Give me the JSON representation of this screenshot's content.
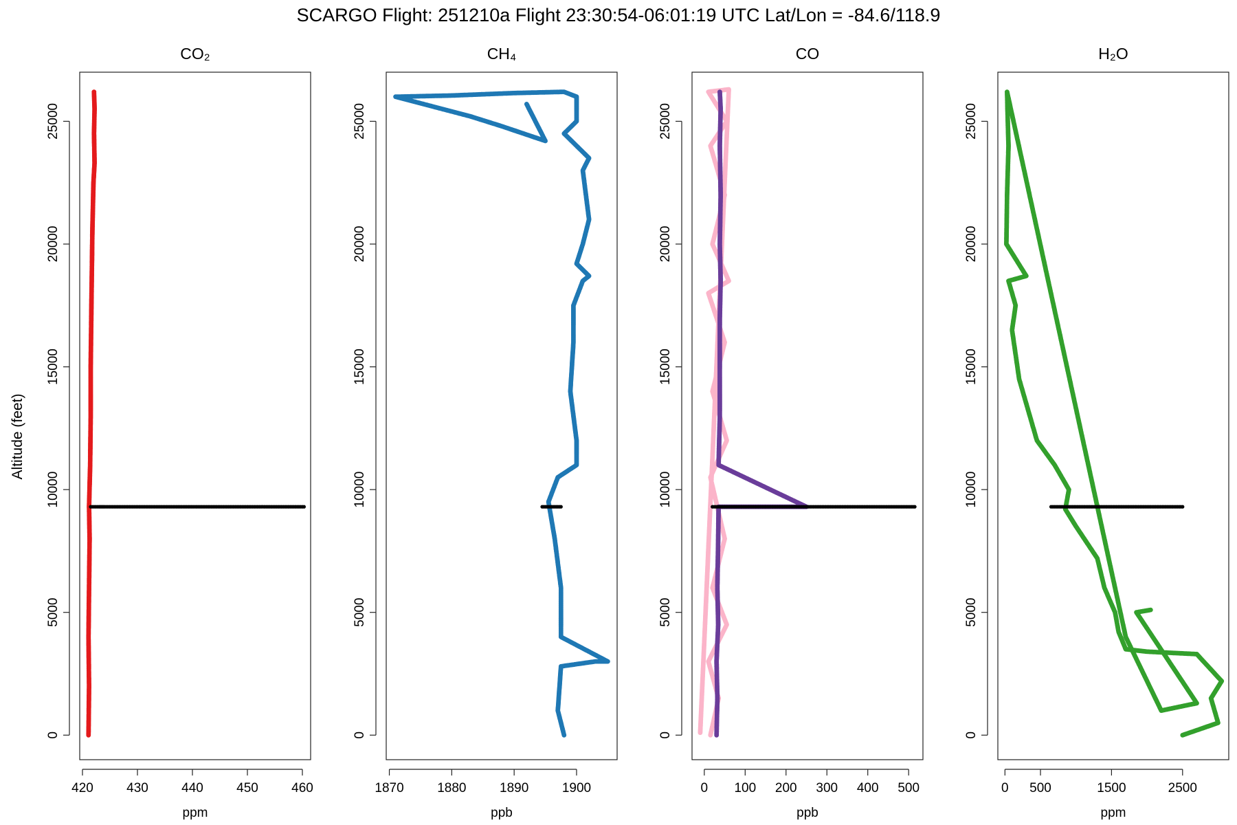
{
  "title": "SCARGO Flight: 251210a  Flight  23:30:54-06:01:19 UTC  Lat/Lon = -84.6/118.9",
  "ylabel": "Altitude (feet)",
  "chart_data": [
    {
      "type": "scatter",
      "title": "CO₂",
      "xlabel": "ppm",
      "xlim": [
        419.5,
        461.5
      ],
      "xticks": [
        420,
        430,
        440,
        450,
        460
      ],
      "ylim": [
        -1000,
        27000
      ],
      "yticks": [
        0,
        5000,
        10000,
        15000,
        20000,
        25000
      ],
      "series": [
        {
          "color": "#e41a1c",
          "points": [
            [
              421.1,
              0
            ],
            [
              421.2,
              2000
            ],
            [
              421.1,
              4000
            ],
            [
              421.2,
              6000
            ],
            [
              421.3,
              8000
            ],
            [
              421.2,
              9300
            ],
            [
              421.4,
              11000
            ],
            [
              421.5,
              13000
            ],
            [
              421.5,
              15000
            ],
            [
              421.6,
              17000
            ],
            [
              421.7,
              18800
            ],
            [
              421.8,
              20500
            ],
            [
              422.0,
              22500
            ],
            [
              422.2,
              23300
            ],
            [
              422.1,
              24500
            ],
            [
              422.2,
              25500
            ],
            [
              422.1,
              26200
            ]
          ]
        },
        {
          "color": "#000000",
          "points": [
            [
              421.5,
              9300
            ],
            [
              423.0,
              9300
            ],
            [
              424.0,
              9300
            ],
            [
              427.0,
              9300
            ],
            [
              436.5,
              9300
            ],
            [
              445.0,
              9300
            ],
            [
              460.3,
              9300
            ]
          ]
        }
      ]
    },
    {
      "type": "scatter",
      "title": "CH₄",
      "xlabel": "ppb",
      "xlim": [
        1869.5,
        1906.5
      ],
      "xticks": [
        1870,
        1880,
        1890,
        1900
      ],
      "ylim": [
        -1000,
        27000
      ],
      "yticks": [
        0,
        5000,
        10000,
        15000,
        20000,
        25000
      ],
      "series": [
        {
          "color": "#1f78b4",
          "points": [
            [
              1898,
              0
            ],
            [
              1897,
              1000
            ],
            [
              1897.5,
              2800
            ],
            [
              1903,
              3000
            ],
            [
              1905,
              3000
            ],
            [
              1897.5,
              4000
            ],
            [
              1897.5,
              6000
            ],
            [
              1896.5,
              8000
            ],
            [
              1895.5,
              9500
            ],
            [
              1897,
              10500
            ],
            [
              1900,
              11000
            ],
            [
              1900,
              12000
            ],
            [
              1899,
              14000
            ],
            [
              1899.5,
              16000
            ],
            [
              1899.5,
              17500
            ],
            [
              1901,
              18500
            ],
            [
              1902,
              18700
            ],
            [
              1900,
              19200
            ],
            [
              1901,
              20000
            ],
            [
              1902,
              21000
            ],
            [
              1901.5,
              22000
            ],
            [
              1901,
              23000
            ],
            [
              1902,
              23500
            ],
            [
              1898,
              24500
            ],
            [
              1900,
              25000
            ],
            [
              1900,
              26000
            ],
            [
              1898,
              26200
            ],
            [
              1890,
              26150
            ],
            [
              1880,
              26050
            ],
            [
              1871,
              26000
            ],
            [
              1883,
              25200
            ],
            [
              1888,
              24800
            ],
            [
              1895,
              24200
            ],
            [
              1892,
              25700
            ]
          ]
        },
        {
          "color": "#000000",
          "points": [
            [
              1894.5,
              9300
            ],
            [
              1895.5,
              9300
            ],
            [
              1896.5,
              9300
            ],
            [
              1897.5,
              9300
            ]
          ]
        }
      ]
    },
    {
      "type": "scatter",
      "title": "CO",
      "xlabel": "ppb",
      "xlim": [
        -30,
        535
      ],
      "xticks": [
        0,
        100,
        200,
        300,
        400,
        500
      ],
      "ylim": [
        -1000,
        27000
      ],
      "yticks": [
        0,
        5000,
        10000,
        15000,
        20000,
        25000
      ],
      "series": [
        {
          "color": "#fbb4c9",
          "points": [
            [
              15,
              0
            ],
            [
              35,
              1500
            ],
            [
              10,
              3000
            ],
            [
              55,
              4500
            ],
            [
              20,
              6000
            ],
            [
              50,
              8000
            ],
            [
              15,
              10500
            ],
            [
              55,
              12000
            ],
            [
              20,
              14000
            ],
            [
              50,
              16000
            ],
            [
              10,
              18000
            ],
            [
              60,
              18500
            ],
            [
              20,
              20000
            ],
            [
              50,
              22000
            ],
            [
              15,
              24000
            ],
            [
              55,
              25000
            ],
            [
              10,
              26200
            ],
            [
              60,
              26300
            ],
            [
              -10,
              100
            ]
          ]
        },
        {
          "color": "#6a3d9a",
          "points": [
            [
              30,
              0
            ],
            [
              32,
              1500
            ],
            [
              30,
              3000
            ],
            [
              34,
              4500
            ],
            [
              32,
              6000
            ],
            [
              34,
              8000
            ],
            [
              35,
              9300
            ],
            [
              80,
              9300
            ],
            [
              160,
              9300
            ],
            [
              250,
              9300
            ],
            [
              35,
              11000
            ],
            [
              38,
              13000
            ],
            [
              38,
              15000
            ],
            [
              38,
              17000
            ],
            [
              40,
              18500
            ],
            [
              38,
              20000
            ],
            [
              40,
              22000
            ],
            [
              38,
              24000
            ],
            [
              40,
              25500
            ],
            [
              38,
              26200
            ]
          ]
        },
        {
          "color": "#000000",
          "points": [
            [
              20,
              9300
            ],
            [
              280,
              9300
            ],
            [
              400,
              9300
            ],
            [
              450,
              9300
            ],
            [
              515,
              9300
            ]
          ]
        }
      ]
    },
    {
      "type": "scatter",
      "title": "H₂O",
      "xlabel": "ppm",
      "xlim": [
        -100,
        3150
      ],
      "xticks": [
        0,
        500,
        1500,
        2500
      ],
      "ylim": [
        -1000,
        27000
      ],
      "yticks": [
        0,
        5000,
        10000,
        15000,
        20000,
        25000
      ],
      "series": [
        {
          "color": "#33a02c",
          "points": [
            [
              2500,
              0
            ],
            [
              3000,
              500
            ],
            [
              2900,
              1500
            ],
            [
              3050,
              2200
            ],
            [
              2700,
              3300
            ],
            [
              2000,
              3400
            ],
            [
              1700,
              3500
            ],
            [
              1600,
              4200
            ],
            [
              1550,
              5000
            ],
            [
              1400,
              6000
            ],
            [
              1300,
              7200
            ],
            [
              1000,
              8500
            ],
            [
              850,
              9200
            ],
            [
              900,
              10000
            ],
            [
              700,
              11000
            ],
            [
              450,
              12000
            ],
            [
              300,
              13500
            ],
            [
              200,
              14500
            ],
            [
              100,
              16500
            ],
            [
              150,
              17500
            ],
            [
              50,
              18500
            ],
            [
              300,
              18700
            ],
            [
              20,
              20000
            ],
            [
              30,
              22000
            ],
            [
              50,
              24000
            ],
            [
              40,
              25000
            ],
            [
              30,
              26200
            ],
            [
              1700,
              4000
            ],
            [
              2200,
              1000
            ],
            [
              2700,
              1300
            ],
            [
              1850,
              5000
            ],
            [
              2050,
              5100
            ]
          ]
        },
        {
          "color": "#000000",
          "points": [
            [
              650,
              9300
            ],
            [
              1000,
              9300
            ],
            [
              1500,
              9300
            ],
            [
              2000,
              9300
            ],
            [
              2500,
              9300
            ]
          ]
        }
      ]
    }
  ]
}
